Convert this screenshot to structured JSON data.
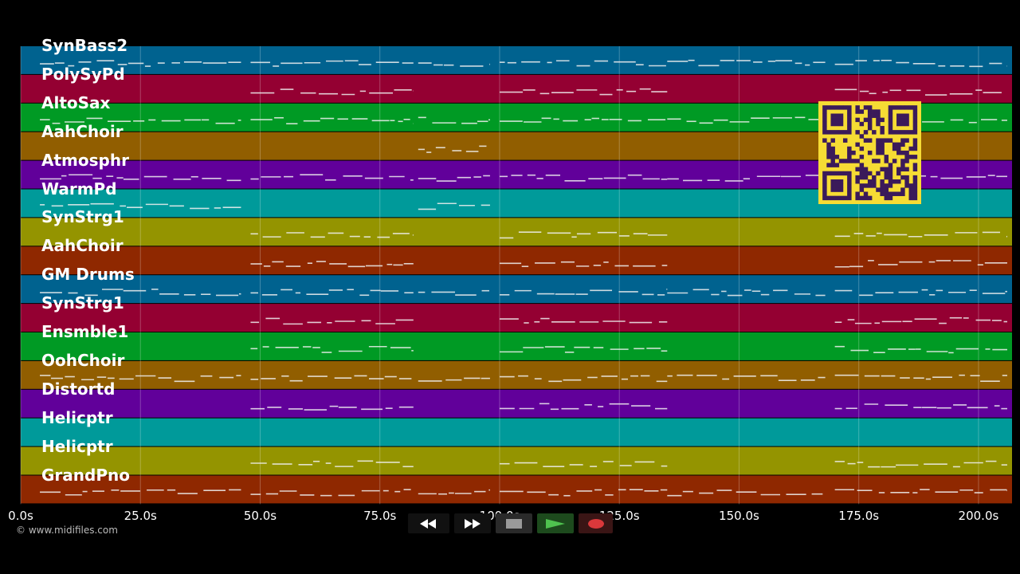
{
  "colors": {
    "background": "#000000",
    "lanes": [
      "#00628f",
      "#940032",
      "#009a24",
      "#915e00",
      "#61009a",
      "#009a9a",
      "#949400",
      "#8f2800"
    ],
    "note": "#f0f0f0",
    "qr_bg": "#f6dc34",
    "qr_fg": "#3a1a5a"
  },
  "tracks": [
    {
      "name": "SynBass2"
    },
    {
      "name": "PolySyPd"
    },
    {
      "name": "AltoSax"
    },
    {
      "name": "AahChoir"
    },
    {
      "name": "Atmosphr"
    },
    {
      "name": "WarmPd"
    },
    {
      "name": "SynStrg1"
    },
    {
      "name": "AahChoir"
    },
    {
      "name": "GM Drums"
    },
    {
      "name": "SynStrg1"
    },
    {
      "name": "Ensmble1"
    },
    {
      "name": "OohChoir"
    },
    {
      "name": "Distortd"
    },
    {
      "name": "Helicptr"
    },
    {
      "name": "Helicptr"
    },
    {
      "name": "GrandPno"
    }
  ],
  "time_axis": {
    "ticks": [
      "0.0s",
      "25.0s",
      "50.0s",
      "75.0s",
      "100.0s",
      "125.0s",
      "150.0s",
      "175.0s",
      "200.0s"
    ],
    "max_seconds": 207
  },
  "copyright": "© www.midifiles.com",
  "transport": {
    "rewind_icon": "rewind-icon",
    "fast_forward_icon": "fast-forward-icon",
    "stop_icon": "stop-icon",
    "play_icon": "play-icon",
    "record_icon": "record-icon"
  },
  "qr_code": {
    "icon": "qr-code-icon"
  }
}
